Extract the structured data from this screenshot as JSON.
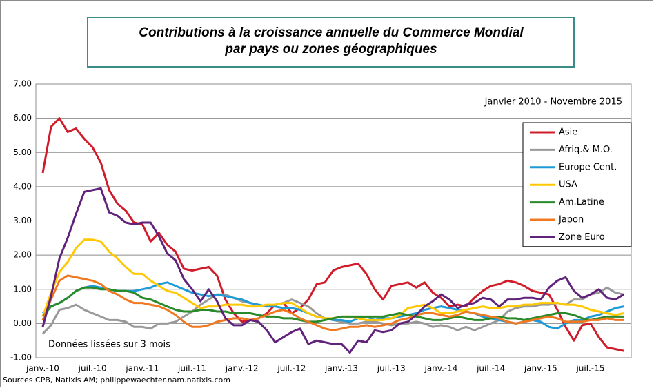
{
  "chart_data": {
    "type": "line",
    "title": [
      "Contributions à la croissance annuelle du Commerce Mondial",
      "par pays ou zones géographiques"
    ],
    "annotations": [
      "Janvier 2010 - Novembre 2015",
      "Données lissées sur 3 mois"
    ],
    "source": "Sources CPB,  Natixis AM; philippewaechter.nam.natixis.com",
    "categories": [
      "janv.-10",
      null,
      null,
      null,
      null,
      null,
      "juil.-10",
      null,
      null,
      null,
      null,
      null,
      "janv.-11",
      null,
      null,
      null,
      null,
      null,
      "juil.-11",
      null,
      null,
      null,
      null,
      null,
      "janv.-12",
      null,
      null,
      null,
      null,
      null,
      "juil.-12",
      null,
      null,
      null,
      null,
      null,
      "janv.-13",
      null,
      null,
      null,
      null,
      null,
      "juil.-13",
      null,
      null,
      null,
      null,
      null,
      "janv.-14",
      null,
      null,
      null,
      null,
      null,
      "juil.-14",
      null,
      null,
      null,
      null,
      null,
      "janv.-15",
      null,
      null,
      null,
      null,
      null,
      "juil.-15",
      null,
      null,
      null,
      null
    ],
    "ylim": [
      -1,
      7
    ],
    "yticks": [
      {
        "value": -1,
        "label": "-1.00"
      },
      {
        "value": 0,
        "label": "0.00"
      },
      {
        "value": 1,
        "label": "1.00"
      },
      {
        "value": 2,
        "label": "2.00"
      },
      {
        "value": 3,
        "label": "3.00"
      },
      {
        "value": 4,
        "label": "4.00"
      },
      {
        "value": 5,
        "label": "5.00"
      },
      {
        "value": 6,
        "label": "6.00"
      },
      {
        "value": 7,
        "label": "7.00"
      }
    ],
    "grid": true,
    "legend": "upper right",
    "series": [
      {
        "name": "Asie",
        "color": "#d01c2a",
        "values": [
          4.4,
          5.75,
          6.0,
          5.6,
          5.7,
          5.4,
          5.15,
          4.7,
          3.9,
          3.5,
          3.3,
          2.95,
          2.9,
          2.4,
          2.65,
          2.3,
          2.1,
          1.6,
          1.55,
          1.6,
          1.65,
          1.4,
          0.7,
          0.3,
          0.05,
          0.1,
          0.15,
          0.3,
          0.55,
          0.6,
          0.3,
          0.45,
          0.7,
          1.15,
          1.2,
          1.55,
          1.65,
          1.7,
          1.75,
          1.45,
          1.0,
          0.7,
          1.1,
          1.15,
          1.2,
          1.05,
          1.2,
          0.9,
          0.75,
          0.5,
          0.55,
          0.5,
          0.75,
          0.95,
          1.1,
          1.15,
          1.25,
          1.2,
          1.1,
          0.95,
          0.9,
          0.85,
          0.4,
          -0.1,
          -0.5,
          -0.05,
          0.0,
          -0.4,
          -0.7,
          -0.75,
          -0.8
        ]
      },
      {
        "name": "Afriq.& M.O.",
        "color": "#999999",
        "values": [
          -0.3,
          -0.05,
          0.4,
          0.45,
          0.55,
          0.4,
          0.3,
          0.2,
          0.1,
          0.1,
          0.05,
          -0.1,
          -0.1,
          -0.15,
          0.0,
          0.0,
          0.05,
          0.2,
          0.35,
          0.55,
          0.7,
          0.85,
          0.85,
          0.75,
          0.65,
          0.6,
          0.55,
          0.5,
          0.55,
          0.6,
          0.7,
          0.6,
          0.5,
          0.3,
          0.15,
          0.1,
          0.05,
          0.0,
          0.0,
          0.05,
          0.05,
          0.0,
          -0.05,
          0.0,
          0.0,
          0.05,
          0.0,
          -0.1,
          -0.05,
          -0.1,
          -0.2,
          -0.1,
          -0.2,
          -0.1,
          0.0,
          0.1,
          0.35,
          0.45,
          0.5,
          0.5,
          0.55,
          0.55,
          0.6,
          0.55,
          0.7,
          0.7,
          0.85,
          0.9,
          1.05,
          0.9,
          0.85
        ]
      },
      {
        "name": "Europe Cent.",
        "color": "#1e9ad6",
        "values": [
          0.3,
          0.5,
          0.6,
          0.75,
          0.95,
          1.05,
          1.1,
          1.05,
          1.0,
          0.95,
          0.95,
          0.95,
          1.0,
          1.05,
          1.15,
          1.2,
          1.1,
          1.0,
          0.9,
          0.85,
          0.8,
          0.85,
          0.8,
          0.75,
          0.7,
          0.6,
          0.55,
          0.5,
          0.5,
          0.45,
          0.45,
          0.4,
          0.3,
          0.2,
          0.15,
          0.1,
          0.1,
          0.05,
          0.15,
          0.2,
          0.1,
          0.15,
          0.15,
          0.2,
          0.25,
          0.3,
          0.4,
          0.45,
          0.5,
          0.45,
          0.4,
          0.35,
          0.3,
          0.2,
          0.15,
          0.1,
          0.05,
          0.0,
          0.05,
          0.1,
          0.05,
          -0.1,
          -0.15,
          0.0,
          0.1,
          0.1,
          0.2,
          0.25,
          0.35,
          0.45,
          0.5
        ]
      },
      {
        "name": "USA",
        "color": "#ffc800",
        "values": [
          0.2,
          0.9,
          1.5,
          1.8,
          2.2,
          2.45,
          2.45,
          2.4,
          2.1,
          1.9,
          1.65,
          1.45,
          1.45,
          1.25,
          1.1,
          0.95,
          0.9,
          0.75,
          0.6,
          0.45,
          0.5,
          0.5,
          0.55,
          0.55,
          0.55,
          0.5,
          0.5,
          0.55,
          0.55,
          0.6,
          0.6,
          0.45,
          0.3,
          0.2,
          0.15,
          0.15,
          0.2,
          0.2,
          0.15,
          0.1,
          0.1,
          0.1,
          0.15,
          0.25,
          0.45,
          0.5,
          0.55,
          0.45,
          0.3,
          0.3,
          0.35,
          0.4,
          0.45,
          0.5,
          0.45,
          0.45,
          0.5,
          0.5,
          0.55,
          0.55,
          0.6,
          0.6,
          0.6,
          0.55,
          0.55,
          0.5,
          0.4,
          0.35,
          0.3,
          0.25,
          0.3
        ]
      },
      {
        "name": "Am.Latine",
        "color": "#2a8a2a",
        "values": [
          0.2,
          0.5,
          0.6,
          0.75,
          0.95,
          1.05,
          1.05,
          1.0,
          1.0,
          0.95,
          0.95,
          0.9,
          0.75,
          0.7,
          0.6,
          0.5,
          0.4,
          0.35,
          0.35,
          0.4,
          0.4,
          0.35,
          0.35,
          0.3,
          0.3,
          0.3,
          0.25,
          0.2,
          0.2,
          0.15,
          0.15,
          0.1,
          0.05,
          0.05,
          0.1,
          0.15,
          0.2,
          0.2,
          0.2,
          0.2,
          0.2,
          0.2,
          0.25,
          0.3,
          0.25,
          0.2,
          0.15,
          0.1,
          0.1,
          0.15,
          0.2,
          0.15,
          0.1,
          0.1,
          0.15,
          0.2,
          0.15,
          0.15,
          0.1,
          0.15,
          0.2,
          0.25,
          0.3,
          0.3,
          0.25,
          0.15,
          0.1,
          0.15,
          0.2,
          0.2,
          0.2
        ]
      },
      {
        "name": "Japon",
        "color": "#f07820",
        "values": [
          0.1,
          0.7,
          1.25,
          1.4,
          1.35,
          1.3,
          1.25,
          1.15,
          0.95,
          0.85,
          0.7,
          0.6,
          0.6,
          0.55,
          0.5,
          0.4,
          0.25,
          0.05,
          -0.1,
          -0.1,
          -0.05,
          0.05,
          0.1,
          0.15,
          0.15,
          0.1,
          0.15,
          0.25,
          0.35,
          0.4,
          0.3,
          0.15,
          0.05,
          -0.05,
          -0.15,
          -0.2,
          -0.15,
          -0.1,
          -0.1,
          -0.05,
          -0.1,
          -0.05,
          0.0,
          0.1,
          0.15,
          0.25,
          0.3,
          0.3,
          0.25,
          0.2,
          0.25,
          0.35,
          0.3,
          0.25,
          0.2,
          0.15,
          0.05,
          0.0,
          0.05,
          0.1,
          0.15,
          0.2,
          0.15,
          0.05,
          0.05,
          0.05,
          0.1,
          0.1,
          0.15,
          0.1,
          0.1
        ]
      },
      {
        "name": "Zone Euro",
        "color": "#60227a",
        "values": [
          -0.1,
          0.8,
          1.9,
          2.5,
          3.2,
          3.85,
          3.9,
          3.95,
          3.25,
          3.15,
          2.95,
          2.9,
          2.95,
          2.95,
          2.55,
          2.05,
          1.85,
          1.3,
          1.0,
          0.65,
          1.0,
          0.65,
          0.15,
          -0.05,
          -0.05,
          0.1,
          0.05,
          -0.2,
          -0.55,
          -0.4,
          -0.25,
          -0.15,
          -0.6,
          -0.5,
          -0.55,
          -0.6,
          -0.6,
          -0.85,
          -0.5,
          -0.55,
          -0.2,
          -0.25,
          -0.2,
          0.0,
          0.05,
          0.25,
          0.5,
          0.65,
          0.85,
          0.7,
          0.45,
          0.55,
          0.6,
          0.75,
          0.7,
          0.5,
          0.7,
          0.7,
          0.75,
          0.75,
          0.7,
          1.05,
          1.25,
          1.35,
          0.95,
          0.75,
          0.85,
          1.0,
          0.75,
          0.7,
          0.85
        ]
      }
    ]
  }
}
